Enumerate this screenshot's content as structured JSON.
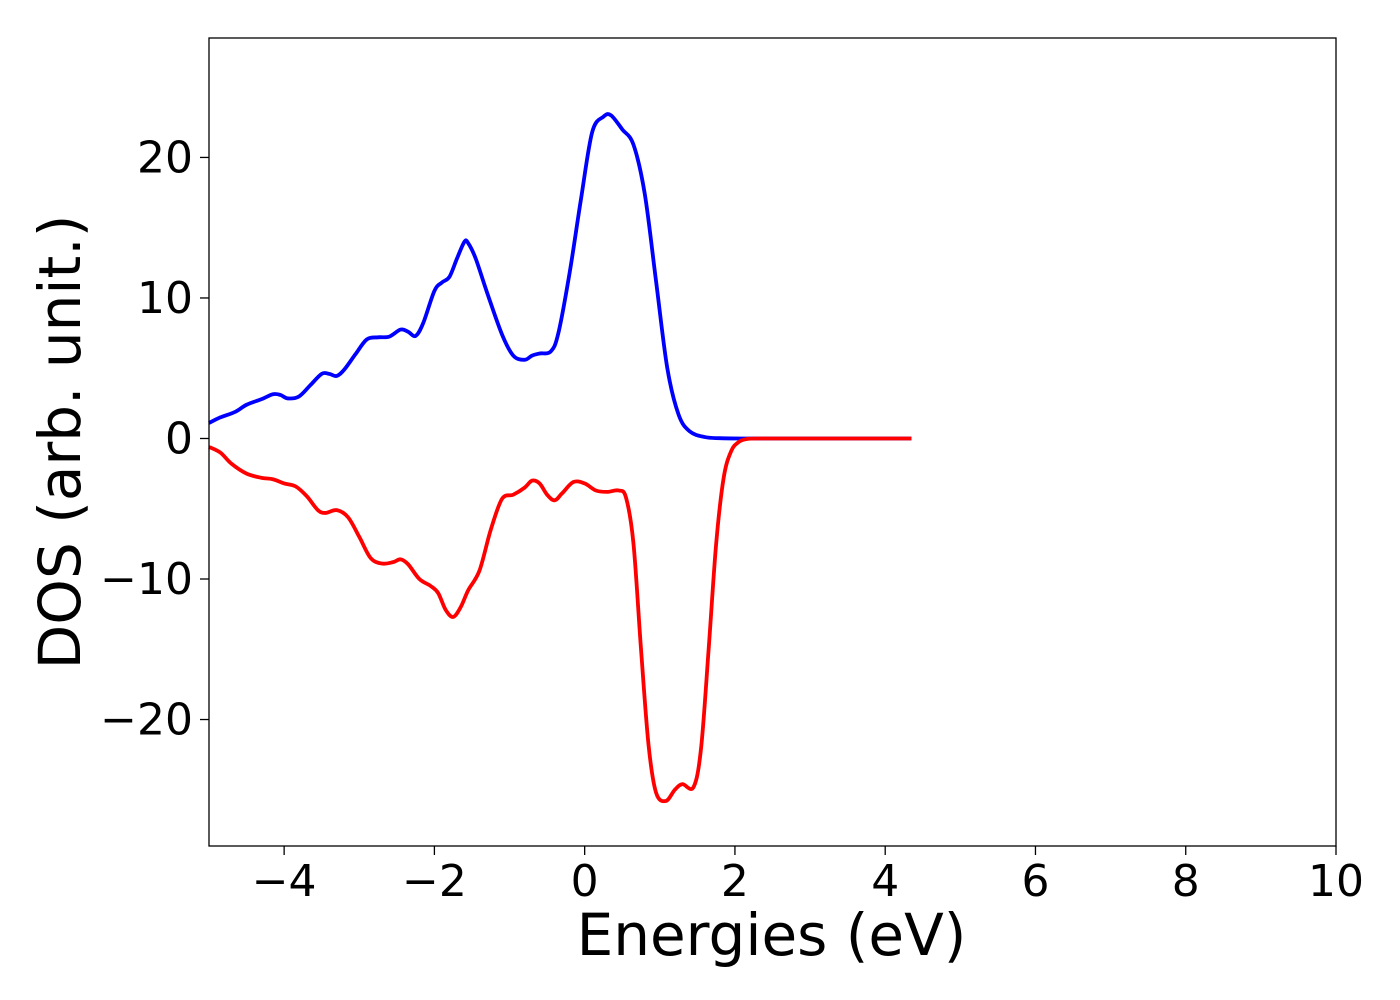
{
  "chart_data": {
    "type": "line",
    "title": "",
    "xlabel": "Energies (eV)",
    "ylabel": "DOS (arb. unit.)",
    "xlim": [
      -5,
      10
    ],
    "ylim": [
      -29,
      28.5
    ],
    "x_ticks": [
      -4,
      -2,
      0,
      2,
      4,
      6,
      8,
      10
    ],
    "x_tick_labels": [
      "−4",
      "−2",
      "0",
      "2",
      "4",
      "6",
      "8",
      "10"
    ],
    "y_ticks": [
      20,
      10,
      0,
      -10,
      -20
    ],
    "y_tick_labels": [
      "20",
      "10",
      "0",
      "−10",
      "−20"
    ],
    "grid": false,
    "legend": "none",
    "series": [
      {
        "color": "#0000ff",
        "points": [
          [
            -5.0,
            1.1
          ],
          [
            -4.85,
            1.5
          ],
          [
            -4.65,
            1.9
          ],
          [
            -4.5,
            2.4
          ],
          [
            -4.3,
            2.8
          ],
          [
            -4.15,
            3.15
          ],
          [
            -4.05,
            3.1
          ],
          [
            -3.95,
            2.85
          ],
          [
            -3.8,
            3.0
          ],
          [
            -3.65,
            3.8
          ],
          [
            -3.5,
            4.6
          ],
          [
            -3.4,
            4.6
          ],
          [
            -3.3,
            4.45
          ],
          [
            -3.2,
            4.9
          ],
          [
            -3.05,
            6.0
          ],
          [
            -2.9,
            7.05
          ],
          [
            -2.75,
            7.2
          ],
          [
            -2.6,
            7.25
          ],
          [
            -2.45,
            7.75
          ],
          [
            -2.35,
            7.6
          ],
          [
            -2.25,
            7.3
          ],
          [
            -2.15,
            8.2
          ],
          [
            -2.0,
            10.5
          ],
          [
            -1.9,
            11.1
          ],
          [
            -1.8,
            11.5
          ],
          [
            -1.7,
            12.8
          ],
          [
            -1.6,
            14.0
          ],
          [
            -1.55,
            13.9
          ],
          [
            -1.45,
            12.8
          ],
          [
            -1.3,
            10.4
          ],
          [
            -1.1,
            7.4
          ],
          [
            -0.95,
            5.9
          ],
          [
            -0.8,
            5.6
          ],
          [
            -0.7,
            5.9
          ],
          [
            -0.6,
            6.05
          ],
          [
            -0.45,
            6.2
          ],
          [
            -0.35,
            7.5
          ],
          [
            -0.2,
            11.8
          ],
          [
            -0.05,
            17.0
          ],
          [
            0.1,
            21.8
          ],
          [
            0.25,
            22.9
          ],
          [
            0.35,
            23.0
          ],
          [
            0.5,
            22.0
          ],
          [
            0.65,
            20.9
          ],
          [
            0.8,
            17.4
          ],
          [
            0.95,
            11.2
          ],
          [
            1.1,
            5.0
          ],
          [
            1.25,
            1.7
          ],
          [
            1.4,
            0.5
          ],
          [
            1.6,
            0.1
          ],
          [
            1.8,
            0.02
          ],
          [
            2.1,
            0.0
          ],
          [
            3.0,
            0.0
          ],
          [
            4.35,
            0.0
          ]
        ]
      },
      {
        "color": "#ff0000",
        "points": [
          [
            -5.0,
            -0.6
          ],
          [
            -4.85,
            -1.0
          ],
          [
            -4.7,
            -1.8
          ],
          [
            -4.5,
            -2.5
          ],
          [
            -4.3,
            -2.8
          ],
          [
            -4.15,
            -2.9
          ],
          [
            -4.0,
            -3.2
          ],
          [
            -3.85,
            -3.4
          ],
          [
            -3.7,
            -4.1
          ],
          [
            -3.55,
            -5.1
          ],
          [
            -3.45,
            -5.3
          ],
          [
            -3.3,
            -5.1
          ],
          [
            -3.15,
            -5.6
          ],
          [
            -3.0,
            -7.0
          ],
          [
            -2.85,
            -8.5
          ],
          [
            -2.7,
            -8.9
          ],
          [
            -2.55,
            -8.8
          ],
          [
            -2.45,
            -8.6
          ],
          [
            -2.35,
            -8.95
          ],
          [
            -2.2,
            -10.0
          ],
          [
            -2.05,
            -10.5
          ],
          [
            -1.95,
            -11.0
          ],
          [
            -1.85,
            -12.2
          ],
          [
            -1.75,
            -12.7
          ],
          [
            -1.65,
            -12.0
          ],
          [
            -1.55,
            -10.8
          ],
          [
            -1.4,
            -9.4
          ],
          [
            -1.25,
            -6.5
          ],
          [
            -1.1,
            -4.3
          ],
          [
            -0.95,
            -4.0
          ],
          [
            -0.8,
            -3.5
          ],
          [
            -0.7,
            -3.0
          ],
          [
            -0.6,
            -3.2
          ],
          [
            -0.5,
            -4.0
          ],
          [
            -0.4,
            -4.4
          ],
          [
            -0.3,
            -3.9
          ],
          [
            -0.15,
            -3.1
          ],
          [
            0.0,
            -3.2
          ],
          [
            0.15,
            -3.7
          ],
          [
            0.3,
            -3.8
          ],
          [
            0.45,
            -3.7
          ],
          [
            0.55,
            -4.2
          ],
          [
            0.65,
            -7.5
          ],
          [
            0.75,
            -15.0
          ],
          [
            0.85,
            -21.8
          ],
          [
            0.95,
            -25.2
          ],
          [
            1.08,
            -25.8
          ],
          [
            1.2,
            -25.0
          ],
          [
            1.3,
            -24.6
          ],
          [
            1.45,
            -24.8
          ],
          [
            1.55,
            -22.0
          ],
          [
            1.65,
            -15.0
          ],
          [
            1.75,
            -7.5
          ],
          [
            1.85,
            -2.8
          ],
          [
            1.95,
            -0.9
          ],
          [
            2.05,
            -0.25
          ],
          [
            2.15,
            -0.05
          ],
          [
            2.3,
            0.0
          ],
          [
            3.0,
            0.0
          ],
          [
            4.35,
            0.0
          ]
        ]
      }
    ]
  }
}
